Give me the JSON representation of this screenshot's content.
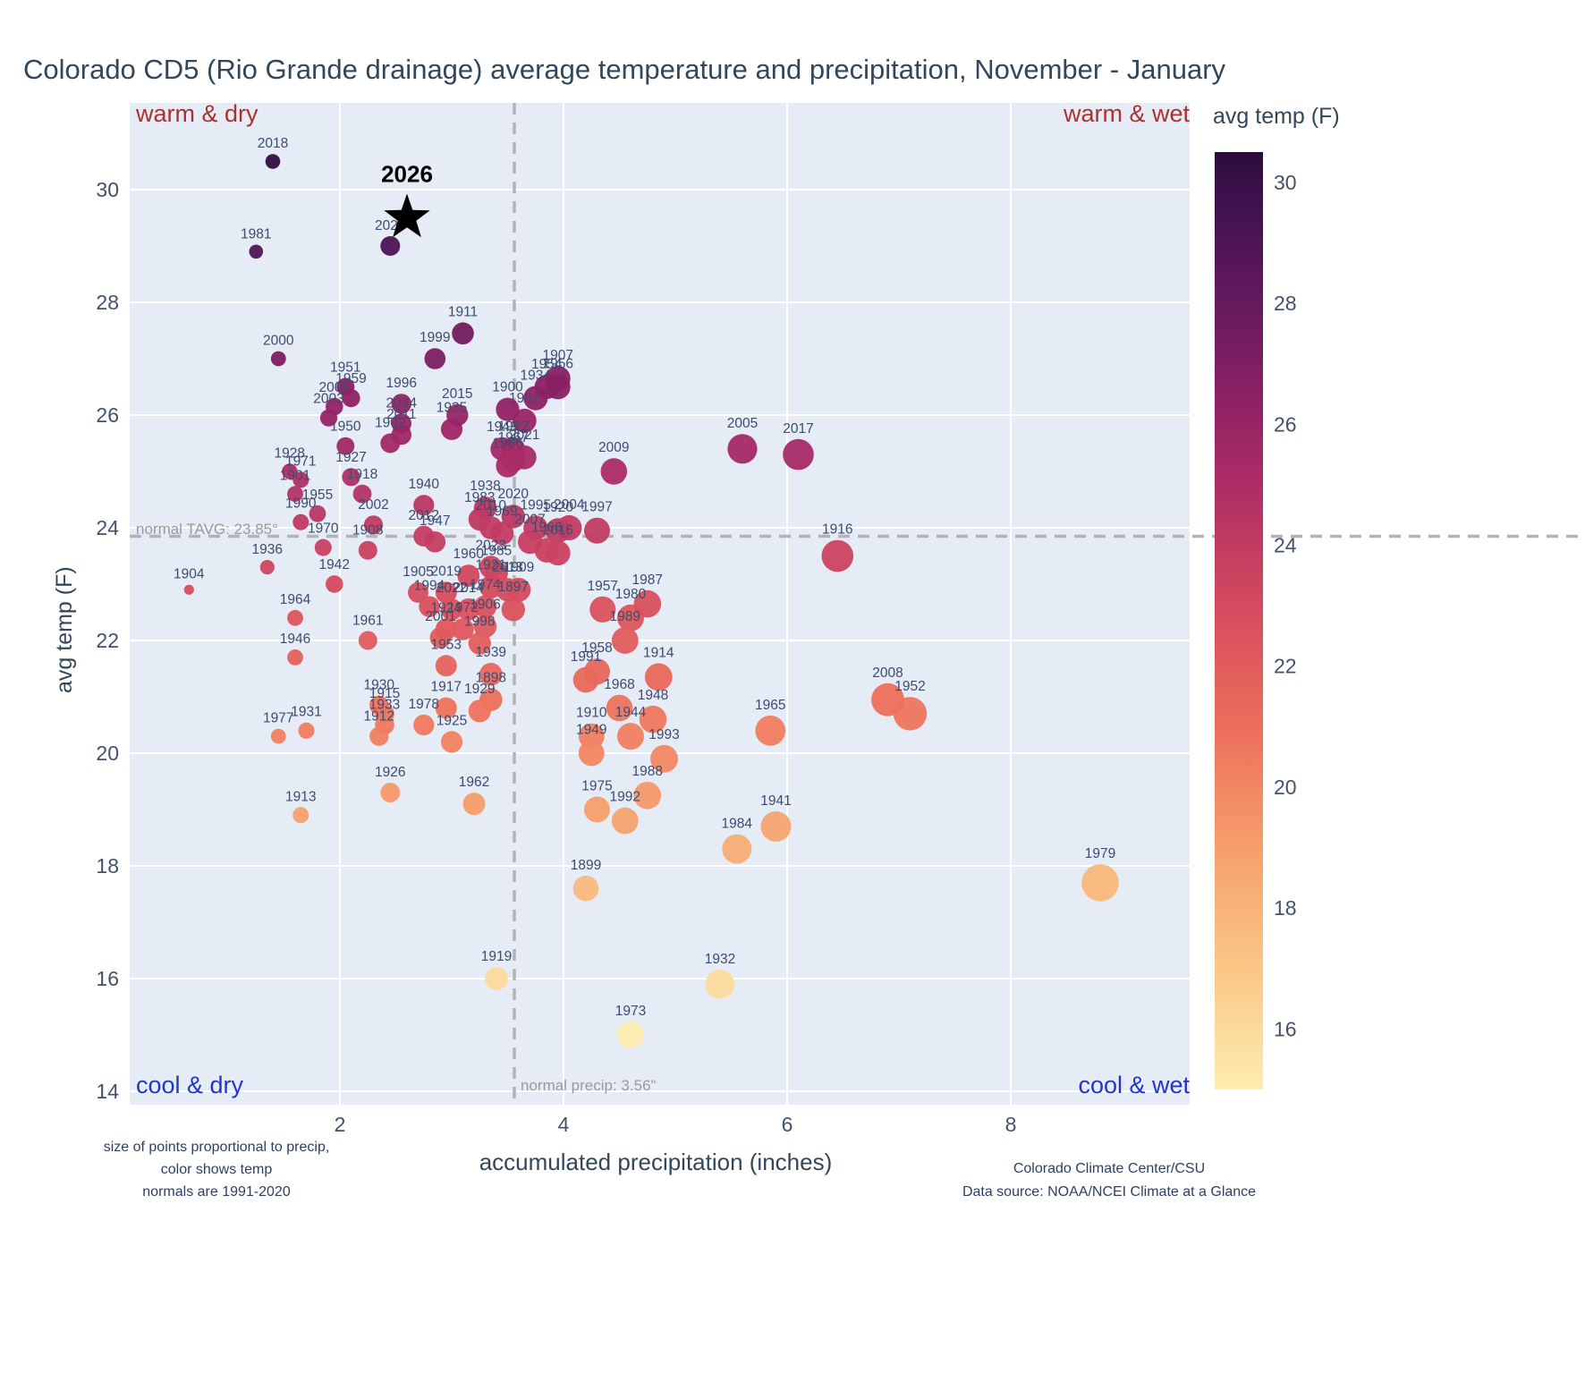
{
  "title": "Colorado CD5 (Rio Grande drainage) average temperature and precipitation, November - January",
  "quadrants": {
    "top_left": "warm & dry",
    "top_right": "warm & wet",
    "bottom_left": "cool & dry",
    "bottom_right": "cool & wet"
  },
  "normals": {
    "tavg_value": 23.85,
    "tavg_label": "normal TAVG: 23.85°",
    "precip_value": 3.56,
    "precip_label": "normal precip: 3.56\""
  },
  "axes": {
    "x_label": "accumulated precipitation (inches)",
    "y_label": "avg temp (F)",
    "x_ticks": [
      2,
      4,
      6,
      8
    ],
    "y_ticks": [
      14,
      16,
      18,
      20,
      22,
      24,
      26,
      28,
      30
    ],
    "x_range": [
      0.12,
      9.6
    ],
    "y_range": [
      13.76,
      31.54
    ]
  },
  "colorbar": {
    "title": "avg temp (F)",
    "ticks": [
      16,
      18,
      20,
      22,
      24,
      26,
      28,
      30
    ],
    "min": 15,
    "max": 30.5
  },
  "footnotes": {
    "left_lines": [
      "size of points proportional to precip,",
      "color shows temp",
      "normals are 1991-2020"
    ],
    "credit1": "Colorado Climate Center/CSU",
    "credit2": "Data source: NOAA/NCEI Climate at a Glance"
  },
  "colors": {
    "plot_bg": "#E5ECF6",
    "grid": "#ffffff",
    "dashed": "#b3b3b3",
    "label_text": "#3c4c6e",
    "tick_text": "#42526b",
    "warm_label": "#a93232",
    "cool_label": "#2136c9",
    "highlight": "#000000",
    "colormap": [
      [
        15,
        "#fdedb0"
      ],
      [
        17,
        "#fac785"
      ],
      [
        19,
        "#f69f6b"
      ],
      [
        21,
        "#ed6e5b"
      ],
      [
        23,
        "#d54a5e"
      ],
      [
        25,
        "#ad2d66"
      ],
      [
        26,
        "#972465"
      ],
      [
        27,
        "#7d1e63"
      ],
      [
        28,
        "#651a5e"
      ],
      [
        29,
        "#4d1455"
      ],
      [
        30,
        "#381049"
      ],
      [
        31,
        "#280c38"
      ]
    ]
  },
  "highlight_point": {
    "year": "2026",
    "precip": 2.6,
    "temp": 29.5
  },
  "chart_data": {
    "type": "scatter",
    "title": "Colorado CD5 (Rio Grande drainage) average temperature and precipitation, November - January",
    "xlabel": "accumulated precipitation (inches)",
    "ylabel": "avg temp (F)",
    "xlim": [
      0.12,
      9.6
    ],
    "ylim": [
      13.76,
      31.54
    ],
    "size_encoding": "point size proportional to precipitation",
    "color_encoding": "color shows avg temp (F), dark purple = warm, pale yellow = cool",
    "columns": [
      "year",
      "precip_inches",
      "avg_temp_f"
    ],
    "points": [
      [
        1897,
        3.55,
        22.55
      ],
      [
        1898,
        3.35,
        20.95
      ],
      [
        1899,
        4.2,
        17.6
      ],
      [
        1900,
        3.5,
        26.1
      ],
      [
        1901,
        1.6,
        24.6
      ],
      [
        1902,
        2.45,
        25.5
      ],
      [
        1904,
        0.65,
        22.9
      ],
      [
        1905,
        2.7,
        22.85
      ],
      [
        1906,
        3.3,
        22.25
      ],
      [
        1907,
        3.95,
        26.65
      ],
      [
        1908,
        2.25,
        23.6
      ],
      [
        1909,
        3.6,
        22.9
      ],
      [
        1910,
        4.25,
        20.3
      ],
      [
        1911,
        3.1,
        27.45
      ],
      [
        1912,
        2.35,
        20.3
      ],
      [
        1913,
        1.65,
        18.9
      ],
      [
        1914,
        4.85,
        21.35
      ],
      [
        1915,
        2.4,
        20.7
      ],
      [
        1916,
        6.45,
        23.5
      ],
      [
        1917,
        2.95,
        20.8
      ],
      [
        1918,
        2.2,
        24.6
      ],
      [
        1919,
        3.4,
        16.0
      ],
      [
        1920,
        3.95,
        23.95
      ],
      [
        1921,
        3.35,
        22.95
      ],
      [
        1922,
        3.55,
        25.4
      ],
      [
        1924,
        2.95,
        22.2
      ],
      [
        1925,
        3.0,
        20.2
      ],
      [
        1926,
        2.45,
        19.3
      ],
      [
        1927,
        2.1,
        24.9
      ],
      [
        1928,
        1.55,
        25.0
      ],
      [
        1929,
        3.25,
        20.75
      ],
      [
        1930,
        2.35,
        20.85
      ],
      [
        1931,
        1.7,
        20.4
      ],
      [
        1932,
        5.4,
        15.9
      ],
      [
        1933,
        2.4,
        20.5
      ],
      [
        1934,
        3.75,
        26.3
      ],
      [
        1935,
        3.0,
        25.75
      ],
      [
        1936,
        1.35,
        23.3
      ],
      [
        1938,
        3.3,
        24.35
      ],
      [
        1939,
        3.35,
        21.4
      ],
      [
        1940,
        2.75,
        24.4
      ],
      [
        1941,
        5.9,
        18.7
      ],
      [
        1942,
        1.95,
        23.0
      ],
      [
        1943,
        3.45,
        25.4
      ],
      [
        1944,
        4.6,
        20.3
      ],
      [
        1946,
        1.6,
        21.7
      ],
      [
        1947,
        2.85,
        23.75
      ],
      [
        1948,
        4.8,
        20.6
      ],
      [
        1949,
        4.25,
        20.0
      ],
      [
        1950,
        2.05,
        25.45
      ],
      [
        1951,
        2.05,
        26.5
      ],
      [
        1952,
        7.1,
        20.7
      ],
      [
        1953,
        2.95,
        21.55
      ],
      [
        1954,
        3.85,
        26.5
      ],
      [
        1955,
        1.8,
        24.25
      ],
      [
        1956,
        3.95,
        26.5
      ],
      [
        1957,
        4.35,
        22.55
      ],
      [
        1958,
        4.3,
        21.45
      ],
      [
        1959,
        2.1,
        26.3
      ],
      [
        1960,
        3.15,
        23.15
      ],
      [
        1961,
        2.25,
        22.0
      ],
      [
        1962,
        3.2,
        19.1
      ],
      [
        1964,
        1.6,
        22.4
      ],
      [
        1965,
        5.85,
        20.4
      ],
      [
        1966,
        3.85,
        23.6
      ],
      [
        1967,
        3.55,
        25.2
      ],
      [
        1968,
        4.5,
        20.8
      ],
      [
        1969,
        3.45,
        23.9
      ],
      [
        1970,
        1.85,
        23.65
      ],
      [
        1971,
        1.65,
        24.85
      ],
      [
        1972,
        3.1,
        22.2
      ],
      [
        1973,
        4.6,
        15.0
      ],
      [
        1974,
        3.3,
        22.6
      ],
      [
        1975,
        4.3,
        19.0
      ],
      [
        1977,
        1.45,
        20.3
      ],
      [
        1978,
        2.75,
        20.5
      ],
      [
        1979,
        8.8,
        17.7
      ],
      [
        1980,
        4.6,
        22.4
      ],
      [
        1981,
        1.25,
        28.9
      ],
      [
        1982,
        3.65,
        25.9
      ],
      [
        1983,
        3.25,
        24.15
      ],
      [
        1984,
        5.55,
        18.3
      ],
      [
        1985,
        3.4,
        23.2
      ],
      [
        1986,
        3.5,
        25.1
      ],
      [
        1987,
        4.75,
        22.65
      ],
      [
        1988,
        4.75,
        19.25
      ],
      [
        1989,
        4.55,
        22.0
      ],
      [
        1990,
        1.65,
        24.1
      ],
      [
        1991,
        4.2,
        21.3
      ],
      [
        1992,
        4.55,
        18.8
      ],
      [
        1993,
        4.9,
        19.9
      ],
      [
        1994,
        2.8,
        22.6
      ],
      [
        1995,
        3.75,
        24.0
      ],
      [
        1996,
        2.55,
        26.2
      ],
      [
        1997,
        4.3,
        23.95
      ],
      [
        1998,
        3.25,
        21.95
      ],
      [
        1999,
        2.85,
        27.0
      ],
      [
        2000,
        1.45,
        27.0
      ],
      [
        2001,
        2.9,
        22.05
      ],
      [
        2002,
        2.3,
        24.05
      ],
      [
        2003,
        1.9,
        25.95
      ],
      [
        2004,
        4.05,
        24.0
      ],
      [
        2005,
        5.6,
        25.4
      ],
      [
        2006,
        1.95,
        26.15
      ],
      [
        2007,
        3.7,
        23.75
      ],
      [
        2008,
        6.9,
        20.95
      ],
      [
        2009,
        4.45,
        25.0
      ],
      [
        2010,
        3.35,
        24.0
      ],
      [
        2011,
        2.55,
        25.65
      ],
      [
        2012,
        2.75,
        23.85
      ],
      [
        2013,
        3.5,
        22.9
      ],
      [
        2014,
        3.15,
        22.55
      ],
      [
        2015,
        3.05,
        26.0
      ],
      [
        2016,
        3.95,
        23.55
      ],
      [
        2017,
        6.1,
        25.3
      ],
      [
        2018,
        1.4,
        30.5
      ],
      [
        2019,
        2.95,
        22.85
      ],
      [
        2020,
        3.55,
        24.2
      ],
      [
        2021,
        3.65,
        25.25
      ],
      [
        2022,
        3.0,
        22.55
      ],
      [
        2023,
        3.35,
        23.3
      ],
      [
        2024,
        2.55,
        25.85
      ],
      [
        2025,
        2.45,
        29.0
      ]
    ],
    "highlight": {
      "year": 2026,
      "precip": 2.6,
      "temp": 29.5,
      "marker": "star"
    }
  }
}
